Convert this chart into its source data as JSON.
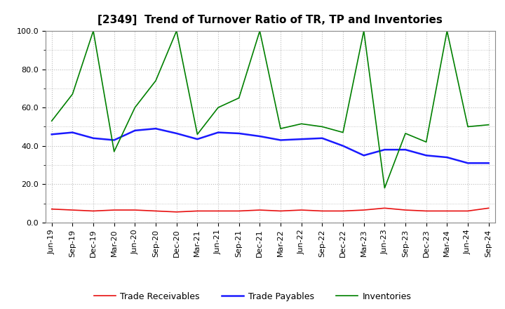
{
  "title": "[2349]  Trend of Turnover Ratio of TR, TP and Inventories",
  "x_labels": [
    "Jun-19",
    "Sep-19",
    "Dec-19",
    "Mar-20",
    "Jun-20",
    "Sep-20",
    "Dec-20",
    "Mar-21",
    "Jun-21",
    "Sep-21",
    "Dec-21",
    "Mar-22",
    "Jun-22",
    "Sep-22",
    "Dec-22",
    "Mar-23",
    "Jun-23",
    "Sep-23",
    "Dec-23",
    "Mar-24",
    "Jun-24",
    "Sep-24"
  ],
  "trade_receivables": [
    7.0,
    6.5,
    6.0,
    6.5,
    6.5,
    6.0,
    5.5,
    6.0,
    6.0,
    6.0,
    6.5,
    6.0,
    6.5,
    6.0,
    6.0,
    6.5,
    7.5,
    6.5,
    6.0,
    6.0,
    6.0,
    7.5
  ],
  "trade_payables": [
    46.0,
    47.0,
    44.0,
    43.0,
    48.0,
    49.0,
    46.5,
    43.5,
    47.0,
    46.5,
    45.0,
    43.0,
    43.5,
    44.0,
    40.0,
    35.0,
    38.0,
    38.0,
    35.0,
    34.0,
    31.0,
    31.0
  ],
  "inventories": [
    53.0,
    67.0,
    100.0,
    37.0,
    60.0,
    74.0,
    100.0,
    46.0,
    60.0,
    65.0,
    100.0,
    49.0,
    51.5,
    50.0,
    47.0,
    100.0,
    18.0,
    46.5,
    42.0,
    100.0,
    50.0,
    51.0
  ],
  "ylim": [
    0.0,
    100.0
  ],
  "yticks": [
    0.0,
    20.0,
    40.0,
    60.0,
    80.0,
    100.0
  ],
  "tr_color": "#e81010",
  "tp_color": "#1a1aff",
  "inv_color": "#008000",
  "tr_label": "Trade Receivables",
  "tp_label": "Trade Payables",
  "inv_label": "Inventories",
  "background_color": "#ffffff",
  "grid_color": "#bbbbbb",
  "title_fontsize": 11,
  "legend_fontsize": 9,
  "tick_fontsize": 8
}
